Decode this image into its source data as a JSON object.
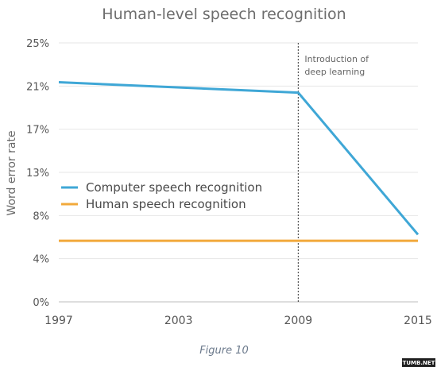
{
  "chart_data": {
    "type": "line",
    "title": "Human-level speech recognition",
    "ylabel": "Word error rate",
    "xlabel": "",
    "x_ticks": [
      "1997",
      "2003",
      "2009",
      "2015"
    ],
    "y_ticks": [
      "25%",
      "21%",
      "17%",
      "13%",
      "8%",
      "4%",
      "0%"
    ],
    "xlim": [
      1997,
      2015
    ],
    "ylim": [
      0,
      25
    ],
    "grid": "horizontal",
    "legend_position": "center-left",
    "series": [
      {
        "name": "Computer speech recognition",
        "color": "#3fa7d6",
        "x": [
          1997,
          2009,
          2015
        ],
        "y": [
          21.2,
          20.2,
          6.5
        ]
      },
      {
        "name": "Human speech recognition",
        "color": "#f2a93b",
        "x": [
          1997,
          2015
        ],
        "y": [
          5.9,
          5.9
        ]
      }
    ],
    "annotations": [
      {
        "x": 2009,
        "line": "vertical-dotted",
        "text_lines": [
          "Introduction of",
          "deep learning"
        ]
      }
    ],
    "caption": "Figure 10"
  },
  "watermark": "TUMB.NET"
}
